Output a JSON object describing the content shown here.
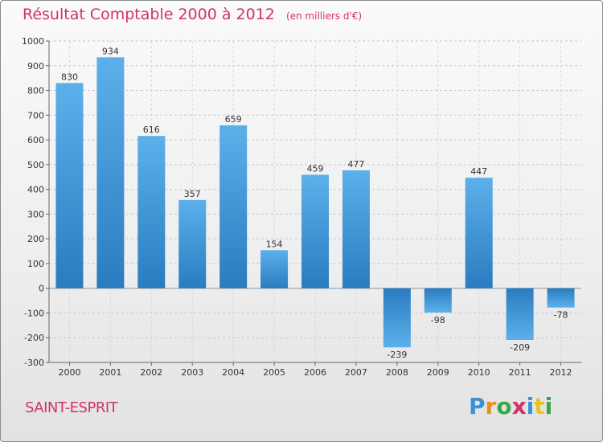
{
  "header": {
    "title": "Résultat Comptable 2000 à 2012",
    "subtitle": "(en milliers d'€)"
  },
  "footer": {
    "commune": "SAINT-ESPRIT",
    "logo_letters": [
      "P",
      "r",
      "o",
      "x",
      "i",
      "t",
      "i"
    ]
  },
  "colors": {
    "title": "#d2326a",
    "bar_light": "#5aaee8",
    "bar_dark": "#2a7fc4"
  },
  "chart_data": {
    "type": "bar",
    "title": "Résultat Comptable 2000 à 2012",
    "subtitle": "(en milliers d'€)",
    "xlabel": "",
    "ylabel": "",
    "ylim": [
      -300,
      1000
    ],
    "yticks": [
      -300,
      -200,
      -100,
      0,
      100,
      200,
      300,
      400,
      500,
      600,
      700,
      800,
      900,
      1000
    ],
    "grid": true,
    "categories": [
      "2000",
      "2001",
      "2002",
      "2003",
      "2004",
      "2005",
      "2006",
      "2007",
      "2008",
      "2009",
      "2010",
      "2011",
      "2012"
    ],
    "values": [
      830,
      934,
      616,
      357,
      659,
      154,
      459,
      477,
      -239,
      -98,
      447,
      -209,
      -78
    ]
  }
}
